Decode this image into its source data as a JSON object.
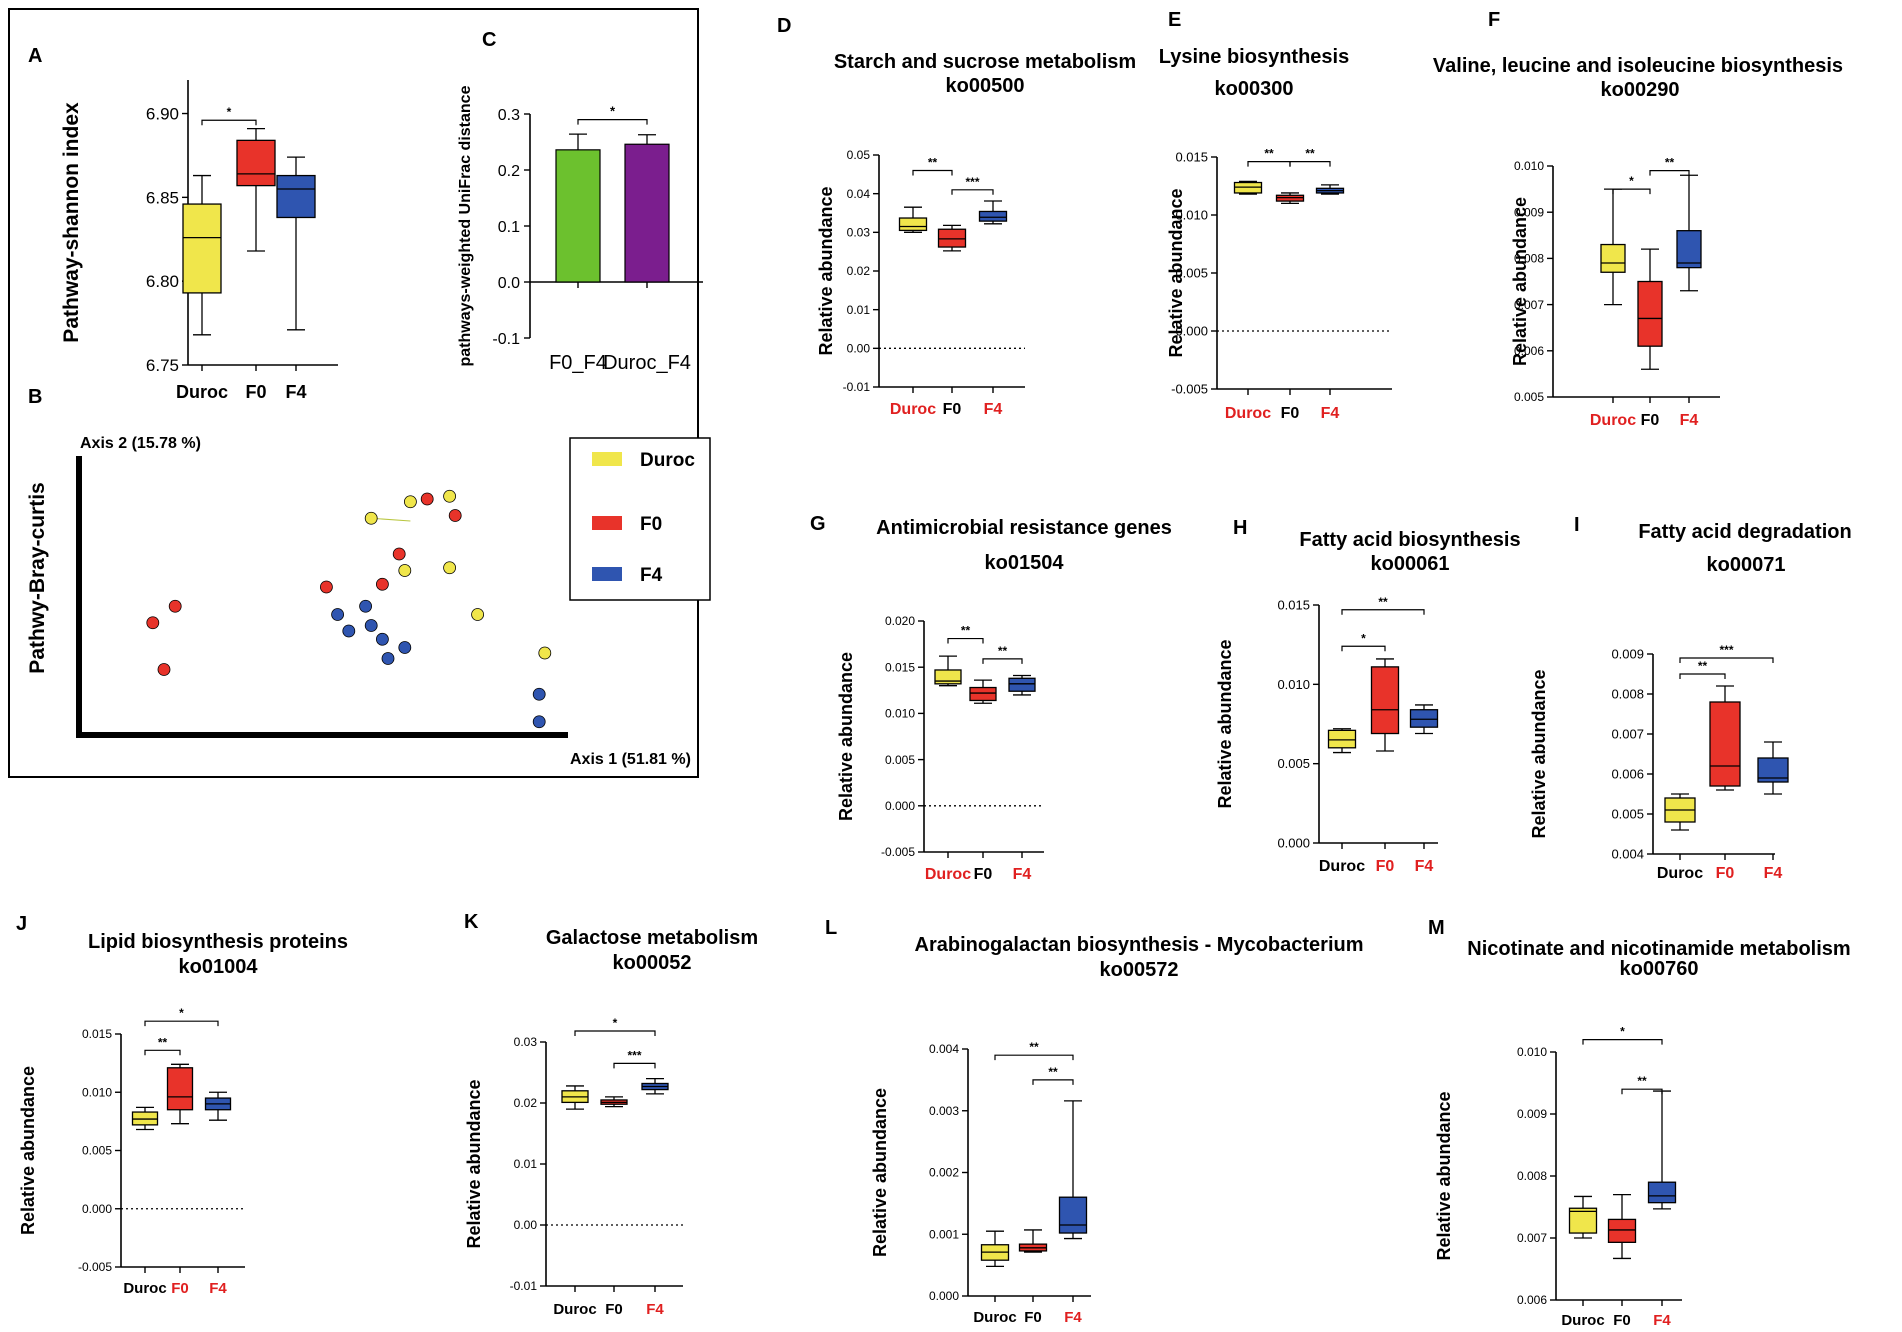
{
  "colors": {
    "duroc": "#f0e64b",
    "f0": "#e8332a",
    "f4": "#2f55b0",
    "green": "#6cc12e",
    "purple": "#7b1e8e",
    "red_label": "#e02020",
    "black": "#000000"
  },
  "chart_data": [
    {
      "id": "A",
      "type": "box",
      "ylabel": "Pathway-shannon index",
      "ylim": [
        6.75,
        6.92
      ],
      "yticks": [
        6.75,
        6.8,
        6.85,
        6.9
      ],
      "tick_labels": [
        "6.75",
        "6.80",
        "6.85",
        "6.90"
      ],
      "categories": [
        "Duroc",
        "F0",
        "F4"
      ],
      "label_colors": [
        "#000000",
        "#000000",
        "#000000"
      ],
      "box_colors": [
        "duroc",
        "f0",
        "f4"
      ],
      "boxes": [
        {
          "min": 6.768,
          "q1": 6.793,
          "median": 6.826,
          "q3": 6.846,
          "max": 6.863
        },
        {
          "min": 6.818,
          "q1": 6.857,
          "median": 6.864,
          "q3": 6.884,
          "max": 6.891
        },
        {
          "min": 6.771,
          "q1": 6.838,
          "median": 6.855,
          "q3": 6.863,
          "max": 6.874
        }
      ],
      "sig": [
        {
          "from": 0,
          "to": 1,
          "y": 6.896,
          "label": "*"
        }
      ]
    },
    {
      "id": "C",
      "type": "bar",
      "ylabel": "pathways-weighted UniFrac distance",
      "ylim": [
        -0.1,
        0.3
      ],
      "yticks": [
        -0.1,
        0.0,
        0.1,
        0.2,
        0.3
      ],
      "tick_labels": [
        "-0.1",
        "0.0",
        "0.1",
        "0.2",
        "0.3"
      ],
      "categories": [
        "F0_F4",
        "Duroc_F4"
      ],
      "values": [
        0.236,
        0.246
      ],
      "errors": [
        0.028,
        0.017
      ],
      "bar_colors": [
        "green",
        "purple"
      ],
      "sig": [
        {
          "from": 0,
          "to": 1,
          "y": 0.29,
          "label": "*"
        }
      ]
    },
    {
      "id": "B",
      "type": "scatter",
      "ylabel": "Pathwy-Bray-curtis",
      "xlabel": "Axis 1 (51.81 %)",
      "y_axis_label": "Axis 2 (15.78 %)",
      "legend": [
        "Duroc",
        "F0",
        "F4"
      ],
      "points": [
        {
          "g": "duroc",
          "x": 0.52,
          "y": 0.77
        },
        {
          "g": "duroc",
          "x": 0.59,
          "y": 0.83
        },
        {
          "g": "duroc",
          "x": 0.66,
          "y": 0.85
        },
        {
          "g": "duroc",
          "x": 0.66,
          "y": 0.59
        },
        {
          "g": "duroc",
          "x": 0.58,
          "y": 0.58
        },
        {
          "g": "duroc",
          "x": 0.71,
          "y": 0.42
        },
        {
          "g": "duroc",
          "x": 0.83,
          "y": 0.28
        },
        {
          "g": "f0",
          "x": 0.62,
          "y": 0.84
        },
        {
          "g": "f0",
          "x": 0.67,
          "y": 0.78
        },
        {
          "g": "f0",
          "x": 0.57,
          "y": 0.64
        },
        {
          "g": "f0",
          "x": 0.54,
          "y": 0.53
        },
        {
          "g": "f0",
          "x": 0.44,
          "y": 0.52
        },
        {
          "g": "f0",
          "x": 0.17,
          "y": 0.45
        },
        {
          "g": "f0",
          "x": 0.13,
          "y": 0.39
        },
        {
          "g": "f0",
          "x": 0.15,
          "y": 0.22
        },
        {
          "g": "f4",
          "x": 0.51,
          "y": 0.45
        },
        {
          "g": "f4",
          "x": 0.46,
          "y": 0.42
        },
        {
          "g": "f4",
          "x": 0.52,
          "y": 0.38
        },
        {
          "g": "f4",
          "x": 0.48,
          "y": 0.36
        },
        {
          "g": "f4",
          "x": 0.54,
          "y": 0.33
        },
        {
          "g": "f4",
          "x": 0.58,
          "y": 0.3
        },
        {
          "g": "f4",
          "x": 0.55,
          "y": 0.26
        },
        {
          "g": "f4",
          "x": 0.82,
          "y": 0.13
        },
        {
          "g": "f4",
          "x": 0.82,
          "y": 0.03
        }
      ]
    },
    {
      "id": "D",
      "type": "box",
      "title": "Starch and sucrose metabolism",
      "subtitle": "ko00500",
      "ylabel": "Relative abundance",
      "ylim": [
        -0.01,
        0.05
      ],
      "yticks": [
        -0.01,
        0.0,
        0.01,
        0.02,
        0.03,
        0.04,
        0.05
      ],
      "tick_labels": [
        "-0.01",
        "0.00",
        "0.01",
        "0.02",
        "0.03",
        "0.04",
        "0.05"
      ],
      "zero_line": true,
      "categories": [
        "Duroc",
        "F0",
        "F4"
      ],
      "label_colors": [
        "#e02020",
        "#000000",
        "#e02020"
      ],
      "box_colors": [
        "duroc",
        "f0",
        "f4"
      ],
      "boxes": [
        {
          "min": 0.03,
          "q1": 0.0305,
          "median": 0.0315,
          "q3": 0.0337,
          "max": 0.0365
        },
        {
          "min": 0.0252,
          "q1": 0.0262,
          "median": 0.0283,
          "q3": 0.0308,
          "max": 0.0318
        },
        {
          "min": 0.0322,
          "q1": 0.0329,
          "median": 0.0339,
          "q3": 0.0354,
          "max": 0.0381
        }
      ],
      "sig": [
        {
          "from": 0,
          "to": 1,
          "y": 0.046,
          "label": "**"
        },
        {
          "from": 1,
          "to": 2,
          "y": 0.041,
          "label": "***"
        }
      ]
    },
    {
      "id": "E",
      "type": "box",
      "title": "Lysine biosynthesis",
      "subtitle": "ko00300",
      "ylabel": "Relative abundance",
      "ylim": [
        -0.005,
        0.015
      ],
      "yticks": [
        -0.005,
        0.0,
        0.005,
        0.01,
        0.015
      ],
      "tick_labels": [
        "-0.005",
        "0.000",
        "0.005",
        "0.010",
        "0.015"
      ],
      "zero_line": true,
      "categories": [
        "Duroc",
        "F0",
        "F4"
      ],
      "label_colors": [
        "#e02020",
        "#000000",
        "#e02020"
      ],
      "box_colors": [
        "duroc",
        "f0",
        "f4"
      ],
      "boxes": [
        {
          "min": 0.0118,
          "q1": 0.0119,
          "median": 0.0124,
          "q3": 0.0128,
          "max": 0.0129
        },
        {
          "min": 0.011,
          "q1": 0.0112,
          "median": 0.0115,
          "q3": 0.0117,
          "max": 0.0119
        },
        {
          "min": 0.0118,
          "q1": 0.0119,
          "median": 0.0121,
          "q3": 0.0123,
          "max": 0.0126
        }
      ],
      "sig": [
        {
          "from": 0,
          "to": 1,
          "y": 0.0146,
          "label": "**"
        },
        {
          "from": 1,
          "to": 2,
          "y": 0.0146,
          "label": "**"
        }
      ]
    },
    {
      "id": "F",
      "type": "box",
      "title": "Valine, leucine and isoleucine biosynthesis",
      "subtitle": "ko00290",
      "ylabel": "Relative abundance",
      "ylim": [
        0.005,
        0.01
      ],
      "yticks": [
        0.005,
        0.006,
        0.007,
        0.008,
        0.009,
        0.01
      ],
      "tick_labels": [
        "0.005",
        "0.006",
        "0.007",
        "0.008",
        "0.009",
        "0.010"
      ],
      "categories": [
        "Duroc",
        "F0",
        "F4"
      ],
      "label_colors": [
        "#e02020",
        "#000000",
        "#e02020"
      ],
      "box_colors": [
        "duroc",
        "f0",
        "f4"
      ],
      "boxes": [
        {
          "min": 0.007,
          "q1": 0.0077,
          "median": 0.0079,
          "q3": 0.0083,
          "max": 0.0095
        },
        {
          "min": 0.0056,
          "q1": 0.0061,
          "median": 0.0067,
          "q3": 0.0075,
          "max": 0.0082
        },
        {
          "min": 0.0073,
          "q1": 0.0078,
          "median": 0.0079,
          "q3": 0.0086,
          "max": 0.0098
        }
      ],
      "sig": [
        {
          "from": 0,
          "to": 1,
          "y": 0.0095,
          "label": "*"
        },
        {
          "from": 1,
          "to": 2,
          "y": 0.0099,
          "label": "**"
        }
      ]
    },
    {
      "id": "G",
      "type": "box",
      "title": "Antimicrobial resistance genes",
      "subtitle": "ko01504",
      "ylabel": "Relative abundance",
      "ylim": [
        -0.005,
        0.02
      ],
      "yticks": [
        -0.005,
        0.0,
        0.005,
        0.01,
        0.015,
        0.02
      ],
      "tick_labels": [
        "-0.005",
        "0.000",
        "0.005",
        "0.010",
        "0.015",
        "0.020"
      ],
      "zero_line": true,
      "categories": [
        "Duroc",
        "F0",
        "F4"
      ],
      "label_colors": [
        "#e02020",
        "#000000",
        "#e02020"
      ],
      "box_colors": [
        "duroc",
        "f0",
        "f4"
      ],
      "boxes": [
        {
          "min": 0.013,
          "q1": 0.0132,
          "median": 0.0135,
          "q3": 0.0147,
          "max": 0.0162
        },
        {
          "min": 0.0111,
          "q1": 0.0114,
          "median": 0.0122,
          "q3": 0.0128,
          "max": 0.0136
        },
        {
          "min": 0.012,
          "q1": 0.0124,
          "median": 0.0132,
          "q3": 0.0138,
          "max": 0.0141
        }
      ],
      "sig": [
        {
          "from": 0,
          "to": 1,
          "y": 0.0181,
          "label": "**"
        },
        {
          "from": 1,
          "to": 2,
          "y": 0.0159,
          "label": "**"
        }
      ]
    },
    {
      "id": "H",
      "type": "box",
      "title": "Fatty acid biosynthesis",
      "subtitle": "ko00061",
      "ylabel": "Relative abundance",
      "ylim": [
        0.0,
        0.015
      ],
      "yticks": [
        0.0,
        0.005,
        0.01,
        0.015
      ],
      "tick_labels": [
        "0.000",
        "0.005",
        "0.010",
        "0.015"
      ],
      "categories": [
        "Duroc",
        "F0",
        "F4"
      ],
      "label_colors": [
        "#000000",
        "#e02020",
        "#e02020"
      ],
      "box_colors": [
        "duroc",
        "f0",
        "f4"
      ],
      "boxes": [
        {
          "min": 0.0057,
          "q1": 0.006,
          "median": 0.0065,
          "q3": 0.0071,
          "max": 0.0072
        },
        {
          "min": 0.0058,
          "q1": 0.0069,
          "median": 0.0084,
          "q3": 0.0111,
          "max": 0.0116
        },
        {
          "min": 0.0069,
          "q1": 0.0073,
          "median": 0.0078,
          "q3": 0.0084,
          "max": 0.0087
        }
      ],
      "sig": [
        {
          "from": 0,
          "to": 1,
          "y": 0.0124,
          "label": "*"
        },
        {
          "from": 0,
          "to": 2,
          "y": 0.0147,
          "label": "**"
        }
      ]
    },
    {
      "id": "I",
      "type": "box",
      "title": "Fatty acid degradation",
      "subtitle": "ko00071",
      "ylabel": "Relative abundance",
      "ylim": [
        0.004,
        0.009
      ],
      "yticks": [
        0.004,
        0.005,
        0.006,
        0.007,
        0.008,
        0.009
      ],
      "tick_labels": [
        "0.004",
        "0.005",
        "0.006",
        "0.007",
        "0.008",
        "0.009"
      ],
      "categories": [
        "Duroc",
        "F0",
        "F4"
      ],
      "label_colors": [
        "#000000",
        "#e02020",
        "#e02020"
      ],
      "box_colors": [
        "duroc",
        "f0",
        "f4"
      ],
      "boxes": [
        {
          "min": 0.0046,
          "q1": 0.0048,
          "median": 0.0051,
          "q3": 0.0054,
          "max": 0.0055
        },
        {
          "min": 0.0056,
          "q1": 0.0057,
          "median": 0.0062,
          "q3": 0.0078,
          "max": 0.0082
        },
        {
          "min": 0.0055,
          "q1": 0.0058,
          "median": 0.0059,
          "q3": 0.0064,
          "max": 0.0068
        }
      ],
      "sig": [
        {
          "from": 0,
          "to": 1,
          "y": 0.0085,
          "label": "**"
        },
        {
          "from": 0,
          "to": 2,
          "y": 0.0089,
          "label": "***"
        }
      ]
    },
    {
      "id": "J",
      "type": "box",
      "title": "Lipid biosynthesis proteins",
      "subtitle": "ko01004",
      "ylabel": "Relative abundance",
      "ylim": [
        -0.005,
        0.015
      ],
      "yticks": [
        -0.005,
        0.0,
        0.005,
        0.01,
        0.015
      ],
      "tick_labels": [
        "-0.005",
        "0.000",
        "0.005",
        "0.010",
        "0.015"
      ],
      "zero_line": true,
      "categories": [
        "Duroc",
        "F0",
        "F4"
      ],
      "label_colors": [
        "#000000",
        "#e02020",
        "#e02020"
      ],
      "box_colors": [
        "duroc",
        "f0",
        "f4"
      ],
      "boxes": [
        {
          "min": 0.0068,
          "q1": 0.0072,
          "median": 0.0077,
          "q3": 0.0083,
          "max": 0.0087
        },
        {
          "min": 0.0073,
          "q1": 0.0085,
          "median": 0.0096,
          "q3": 0.0121,
          "max": 0.0124
        },
        {
          "min": 0.0076,
          "q1": 0.0085,
          "median": 0.009,
          "q3": 0.0095,
          "max": 0.01
        }
      ],
      "sig": [
        {
          "from": 0,
          "to": 1,
          "y": 0.0136,
          "label": "**"
        },
        {
          "from": 0,
          "to": 2,
          "y": 0.0161,
          "label": "*"
        }
      ]
    },
    {
      "id": "K",
      "type": "box",
      "title": "Galactose metabolism",
      "subtitle": "ko00052",
      "ylabel": "Relative abundance",
      "ylim": [
        -0.01,
        0.03
      ],
      "yticks": [
        -0.01,
        0.0,
        0.01,
        0.02,
        0.03
      ],
      "tick_labels": [
        "-0.01",
        "0.00",
        "0.01",
        "0.02",
        "0.03"
      ],
      "zero_line": true,
      "categories": [
        "Duroc",
        "F0",
        "F4"
      ],
      "label_colors": [
        "#000000",
        "#000000",
        "#e02020"
      ],
      "box_colors": [
        "duroc",
        "f0",
        "f4"
      ],
      "boxes": [
        {
          "min": 0.019,
          "q1": 0.0201,
          "median": 0.021,
          "q3": 0.022,
          "max": 0.0228
        },
        {
          "min": 0.0194,
          "q1": 0.0198,
          "median": 0.0201,
          "q3": 0.0205,
          "max": 0.021
        },
        {
          "min": 0.0215,
          "q1": 0.0222,
          "median": 0.0227,
          "q3": 0.0232,
          "max": 0.024
        }
      ],
      "sig": [
        {
          "from": 0,
          "to": 2,
          "y": 0.0318,
          "label": "*"
        },
        {
          "from": 1,
          "to": 2,
          "y": 0.0265,
          "label": "***"
        }
      ]
    },
    {
      "id": "L",
      "type": "box",
      "title": "Arabinogalactan biosynthesis - Mycobacterium",
      "subtitle": "ko00572",
      "ylabel": "Relative abundance",
      "ylim": [
        0.0,
        0.004
      ],
      "yticks": [
        0.0,
        0.001,
        0.002,
        0.003,
        0.004
      ],
      "tick_labels": [
        "0.000",
        "0.001",
        "0.002",
        "0.003",
        "0.004"
      ],
      "categories": [
        "Duroc",
        "F0",
        "F4"
      ],
      "label_colors": [
        "#000000",
        "#000000",
        "#e02020"
      ],
      "box_colors": [
        "duroc",
        "f0",
        "f4"
      ],
      "boxes": [
        {
          "min": 0.00048,
          "q1": 0.00058,
          "median": 0.00071,
          "q3": 0.00083,
          "max": 0.00105
        },
        {
          "min": 0.00071,
          "q1": 0.00073,
          "median": 0.00078,
          "q3": 0.00084,
          "max": 0.00107
        },
        {
          "min": 0.00093,
          "q1": 0.00102,
          "median": 0.00115,
          "q3": 0.0016,
          "max": 0.00316
        }
      ],
      "sig": [
        {
          "from": 0,
          "to": 2,
          "y": 0.0039,
          "label": "**"
        },
        {
          "from": 1,
          "to": 2,
          "y": 0.0035,
          "label": "**"
        }
      ]
    },
    {
      "id": "M",
      "type": "box",
      "title": "Nicotinate and nicotinamide metabolism",
      "subtitle": "ko00760",
      "ylabel": "Relative abundance",
      "ylim": [
        0.006,
        0.01
      ],
      "yticks": [
        0.006,
        0.007,
        0.008,
        0.009,
        0.01
      ],
      "tick_labels": [
        "0.006",
        "0.007",
        "0.008",
        "0.009",
        "0.010"
      ],
      "categories": [
        "Duroc",
        "F0",
        "F4"
      ],
      "label_colors": [
        "#000000",
        "#000000",
        "#e02020"
      ],
      "box_colors": [
        "duroc",
        "f0",
        "f4"
      ],
      "boxes": [
        {
          "min": 0.007,
          "q1": 0.00708,
          "median": 0.00743,
          "q3": 0.00748,
          "max": 0.00767
        },
        {
          "min": 0.00667,
          "q1": 0.00693,
          "median": 0.00713,
          "q3": 0.0073,
          "max": 0.0077
        },
        {
          "min": 0.00747,
          "q1": 0.00757,
          "median": 0.00768,
          "q3": 0.0079,
          "max": 0.00937
        }
      ],
      "sig": [
        {
          "from": 0,
          "to": 2,
          "y": 0.0102,
          "label": "*"
        },
        {
          "from": 1,
          "to": 2,
          "y": 0.0094,
          "label": "**"
        }
      ]
    }
  ]
}
